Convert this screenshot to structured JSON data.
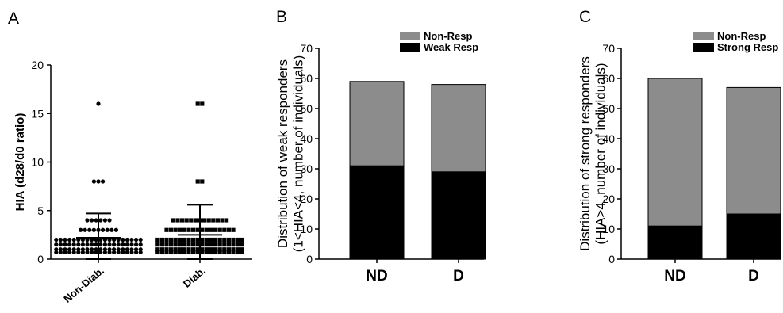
{
  "chart_data": [
    {
      "panel": "A",
      "type": "scatter",
      "ylabel": "HIA (d28/d0 ratio)",
      "ylim": [
        0,
        20
      ],
      "yticks": [
        0,
        5,
        10,
        15,
        20
      ],
      "categories": [
        "Non-Diab.",
        "Diab."
      ],
      "groups": [
        {
          "name": "Non-Diab.",
          "marker": "circle",
          "mean": 2.2,
          "sd_upper": 4.7,
          "sd_lower": 0,
          "points": [
            {
              "y": 16,
              "n": 1
            },
            {
              "y": 8,
              "n": 3
            },
            {
              "y": 4,
              "n": 6
            },
            {
              "y": 3,
              "n": 9
            },
            {
              "y": 2,
              "n": 20
            },
            {
              "y": 1.5,
              "n": 20
            },
            {
              "y": 1,
              "n": 20
            },
            {
              "y": 0.7,
              "n": 20
            }
          ]
        },
        {
          "name": "Diab.",
          "marker": "square",
          "mean": 2.5,
          "sd_upper": 5.6,
          "sd_lower": 0,
          "points": [
            {
              "y": 16,
              "n": 2
            },
            {
              "y": 8,
              "n": 2
            },
            {
              "y": 4,
              "n": 13
            },
            {
              "y": 3,
              "n": 16
            },
            {
              "y": 2,
              "n": 20
            },
            {
              "y": 1.5,
              "n": 20
            },
            {
              "y": 1,
              "n": 20
            },
            {
              "y": 0.7,
              "n": 20
            }
          ]
        }
      ]
    },
    {
      "panel": "B",
      "type": "bar",
      "stacked": true,
      "ylabel": [
        "Distribution of weak responders",
        "(1<HIA<4, number of individuals)"
      ],
      "ylim": [
        0,
        70
      ],
      "yticks": [
        0,
        10,
        20,
        30,
        40,
        50,
        60,
        70
      ],
      "categories": [
        "ND",
        "D"
      ],
      "series": [
        {
          "name": "Weak Resp",
          "color": "#000000",
          "values": [
            31,
            29
          ]
        },
        {
          "name": "Non-Resp",
          "color": "#8c8c8c",
          "values": [
            28,
            29
          ]
        }
      ],
      "legend_order": [
        "Non-Resp",
        "Weak Resp"
      ],
      "legend": "top-right"
    },
    {
      "panel": "C",
      "type": "bar",
      "stacked": true,
      "ylabel": [
        "Distribution of strong responders",
        "(HIA>4, number of individuals)"
      ],
      "ylim": [
        0,
        70
      ],
      "yticks": [
        0,
        10,
        20,
        30,
        40,
        50,
        60,
        70
      ],
      "categories": [
        "ND",
        "D"
      ],
      "series": [
        {
          "name": "Strong Resp",
          "color": "#000000",
          "values": [
            11,
            15
          ]
        },
        {
          "name": "Non-Resp",
          "color": "#8c8c8c",
          "values": [
            49,
            42
          ]
        }
      ],
      "legend_order": [
        "Non-Resp",
        "Strong Resp"
      ],
      "legend": "top-right"
    }
  ]
}
